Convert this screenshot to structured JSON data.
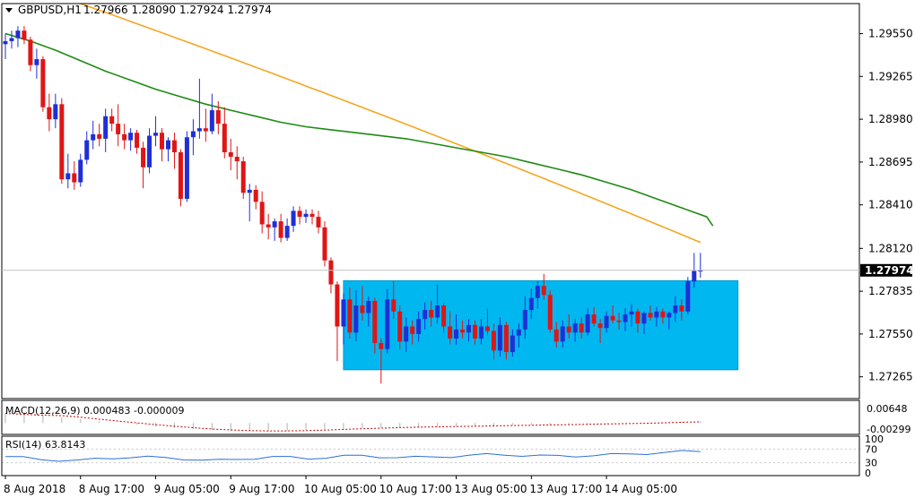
{
  "header": {
    "symbol_label": "GBPUSD,H1",
    "ohlc_text": "1.27966 1.28090 1.27924 1.27974"
  },
  "colors": {
    "bull": "#1f2fd6",
    "bear": "#e01515",
    "sma_fast": "#1e8a12",
    "sma_slow": "#f5a623",
    "box_fill": "#00b7f0",
    "macd_hist": "#b0b0b0",
    "macd_signal": "#c00000",
    "rsi_line": "#2f6fd6",
    "price_tag_bg": "#000000",
    "price_tag_text": "#ffffff"
  },
  "chart_data": [
    {
      "type": "candlestick",
      "name": "GBPUSD H1",
      "ylim": [
        1.2712,
        1.2975
      ],
      "y_ticks": [
        "1.29550",
        "1.29265",
        "1.28980",
        "1.28695",
        "1.28410",
        "1.28120",
        "1.27835",
        "1.27550",
        "1.27265"
      ],
      "y_tick_values": [
        1.2955,
        1.29265,
        1.2898,
        1.28695,
        1.2841,
        1.2812,
        1.27835,
        1.2755,
        1.27265
      ],
      "last_price": "1.27974",
      "last_price_value": 1.27974,
      "x_labels": [
        "8 Aug 2018",
        "8 Aug 17:00",
        "9 Aug 05:00",
        "9 Aug 17:00",
        "10 Aug 05:00",
        "10 Aug 17:00",
        "13 Aug 05:00",
        "13 Aug 17:00",
        "14 Aug 05:00"
      ],
      "x_label_bars": [
        0,
        12,
        24,
        36,
        48,
        60,
        72,
        84,
        96
      ],
      "candles": [
        {
          "o": 1.2948,
          "h": 1.2955,
          "l": 1.2938,
          "c": 1.295
        },
        {
          "o": 1.295,
          "h": 1.2957,
          "l": 1.2945,
          "c": 1.2952
        },
        {
          "o": 1.2952,
          "h": 1.296,
          "l": 1.2946,
          "c": 1.2957
        },
        {
          "o": 1.2957,
          "h": 1.296,
          "l": 1.2948,
          "c": 1.2951
        },
        {
          "o": 1.2951,
          "h": 1.2953,
          "l": 1.293,
          "c": 1.2934
        },
        {
          "o": 1.2934,
          "h": 1.2945,
          "l": 1.2925,
          "c": 1.2938
        },
        {
          "o": 1.2938,
          "h": 1.294,
          "l": 1.2903,
          "c": 1.2906
        },
        {
          "o": 1.2906,
          "h": 1.2915,
          "l": 1.289,
          "c": 1.2898
        },
        {
          "o": 1.2898,
          "h": 1.2915,
          "l": 1.2892,
          "c": 1.2908
        },
        {
          "o": 1.2908,
          "h": 1.2912,
          "l": 1.2855,
          "c": 1.2858
        },
        {
          "o": 1.2858,
          "h": 1.2875,
          "l": 1.2852,
          "c": 1.2862
        },
        {
          "o": 1.2862,
          "h": 1.287,
          "l": 1.2851,
          "c": 1.2856
        },
        {
          "o": 1.2856,
          "h": 1.2875,
          "l": 1.2853,
          "c": 1.2871
        },
        {
          "o": 1.2871,
          "h": 1.289,
          "l": 1.2868,
          "c": 1.2884
        },
        {
          "o": 1.2884,
          "h": 1.2897,
          "l": 1.2878,
          "c": 1.2888
        },
        {
          "o": 1.2888,
          "h": 1.2895,
          "l": 1.288,
          "c": 1.2885
        },
        {
          "o": 1.2885,
          "h": 1.2905,
          "l": 1.2876,
          "c": 1.29
        },
        {
          "o": 1.29,
          "h": 1.2905,
          "l": 1.289,
          "c": 1.2895
        },
        {
          "o": 1.2895,
          "h": 1.2908,
          "l": 1.288,
          "c": 1.2888
        },
        {
          "o": 1.2888,
          "h": 1.2895,
          "l": 1.2878,
          "c": 1.2884
        },
        {
          "o": 1.2884,
          "h": 1.2892,
          "l": 1.2877,
          "c": 1.2889
        },
        {
          "o": 1.2889,
          "h": 1.2891,
          "l": 1.2875,
          "c": 1.2879
        },
        {
          "o": 1.2879,
          "h": 1.2883,
          "l": 1.2852,
          "c": 1.2866
        },
        {
          "o": 1.2866,
          "h": 1.2892,
          "l": 1.2862,
          "c": 1.2887
        },
        {
          "o": 1.2887,
          "h": 1.29,
          "l": 1.288,
          "c": 1.2889
        },
        {
          "o": 1.2889,
          "h": 1.2892,
          "l": 1.287,
          "c": 1.2878
        },
        {
          "o": 1.2878,
          "h": 1.2886,
          "l": 1.287,
          "c": 1.2884
        },
        {
          "o": 1.2884,
          "h": 1.2889,
          "l": 1.2865,
          "c": 1.2876
        },
        {
          "o": 1.2876,
          "h": 1.2878,
          "l": 1.284,
          "c": 1.2845
        },
        {
          "o": 1.2845,
          "h": 1.289,
          "l": 1.2843,
          "c": 1.2886
        },
        {
          "o": 1.2886,
          "h": 1.2898,
          "l": 1.2874,
          "c": 1.289
        },
        {
          "o": 1.289,
          "h": 1.2925,
          "l": 1.2885,
          "c": 1.2892
        },
        {
          "o": 1.2892,
          "h": 1.2905,
          "l": 1.2883,
          "c": 1.289
        },
        {
          "o": 1.289,
          "h": 1.2915,
          "l": 1.2888,
          "c": 1.2904
        },
        {
          "o": 1.2904,
          "h": 1.291,
          "l": 1.2888,
          "c": 1.2895
        },
        {
          "o": 1.2895,
          "h": 1.2906,
          "l": 1.2872,
          "c": 1.2876
        },
        {
          "o": 1.2876,
          "h": 1.2885,
          "l": 1.2864,
          "c": 1.2873
        },
        {
          "o": 1.2873,
          "h": 1.288,
          "l": 1.2858,
          "c": 1.287
        },
        {
          "o": 1.287,
          "h": 1.2873,
          "l": 1.2845,
          "c": 1.2849
        },
        {
          "o": 1.2849,
          "h": 1.2855,
          "l": 1.283,
          "c": 1.2851
        },
        {
          "o": 1.2851,
          "h": 1.2854,
          "l": 1.2838,
          "c": 1.2843
        },
        {
          "o": 1.2843,
          "h": 1.285,
          "l": 1.2822,
          "c": 1.2828
        },
        {
          "o": 1.2828,
          "h": 1.2835,
          "l": 1.2818,
          "c": 1.2826
        },
        {
          "o": 1.2826,
          "h": 1.2832,
          "l": 1.2817,
          "c": 1.283
        },
        {
          "o": 1.283,
          "h": 1.2835,
          "l": 1.2816,
          "c": 1.2819
        },
        {
          "o": 1.2819,
          "h": 1.2832,
          "l": 1.2817,
          "c": 1.2827
        },
        {
          "o": 1.2827,
          "h": 1.284,
          "l": 1.2823,
          "c": 1.2837
        },
        {
          "o": 1.2837,
          "h": 1.284,
          "l": 1.2828,
          "c": 1.2833
        },
        {
          "o": 1.2833,
          "h": 1.2838,
          "l": 1.2829,
          "c": 1.2835
        },
        {
          "o": 1.2835,
          "h": 1.2838,
          "l": 1.2828,
          "c": 1.2833
        },
        {
          "o": 1.2833,
          "h": 1.2837,
          "l": 1.2822,
          "c": 1.2826
        },
        {
          "o": 1.2826,
          "h": 1.283,
          "l": 1.28,
          "c": 1.2804
        },
        {
          "o": 1.2804,
          "h": 1.2806,
          "l": 1.2782,
          "c": 1.2788
        },
        {
          "o": 1.2788,
          "h": 1.279,
          "l": 1.2737,
          "c": 1.276
        },
        {
          "o": 1.276,
          "h": 1.2782,
          "l": 1.2748,
          "c": 1.2778
        },
        {
          "o": 1.2778,
          "h": 1.2786,
          "l": 1.2752,
          "c": 1.2756
        },
        {
          "o": 1.2756,
          "h": 1.2784,
          "l": 1.275,
          "c": 1.2774
        },
        {
          "o": 1.2774,
          "h": 1.2787,
          "l": 1.2764,
          "c": 1.2769
        },
        {
          "o": 1.2769,
          "h": 1.278,
          "l": 1.276,
          "c": 1.2777
        },
        {
          "o": 1.2777,
          "h": 1.2779,
          "l": 1.2742,
          "c": 1.2749
        },
        {
          "o": 1.2749,
          "h": 1.2752,
          "l": 1.2722,
          "c": 1.2745
        },
        {
          "o": 1.2745,
          "h": 1.2785,
          "l": 1.2742,
          "c": 1.2778
        },
        {
          "o": 1.2778,
          "h": 1.279,
          "l": 1.2765,
          "c": 1.277
        },
        {
          "o": 1.277,
          "h": 1.2774,
          "l": 1.2745,
          "c": 1.275
        },
        {
          "o": 1.275,
          "h": 1.2766,
          "l": 1.2743,
          "c": 1.276
        },
        {
          "o": 1.276,
          "h": 1.2764,
          "l": 1.2748,
          "c": 1.2755
        },
        {
          "o": 1.2755,
          "h": 1.277,
          "l": 1.275,
          "c": 1.2765
        },
        {
          "o": 1.2765,
          "h": 1.2776,
          "l": 1.2758,
          "c": 1.2771
        },
        {
          "o": 1.2771,
          "h": 1.2777,
          "l": 1.276,
          "c": 1.2766
        },
        {
          "o": 1.2766,
          "h": 1.2788,
          "l": 1.2762,
          "c": 1.2774
        },
        {
          "o": 1.2774,
          "h": 1.2776,
          "l": 1.2756,
          "c": 1.276
        },
        {
          "o": 1.276,
          "h": 1.277,
          "l": 1.2748,
          "c": 1.2752
        },
        {
          "o": 1.2752,
          "h": 1.2768,
          "l": 1.2748,
          "c": 1.2758
        },
        {
          "o": 1.2758,
          "h": 1.2764,
          "l": 1.2752,
          "c": 1.2756
        },
        {
          "o": 1.2756,
          "h": 1.2765,
          "l": 1.275,
          "c": 1.2761
        },
        {
          "o": 1.2761,
          "h": 1.2764,
          "l": 1.2748,
          "c": 1.2752
        },
        {
          "o": 1.2752,
          "h": 1.2765,
          "l": 1.2748,
          "c": 1.276
        },
        {
          "o": 1.276,
          "h": 1.2772,
          "l": 1.2754,
          "c": 1.2757
        },
        {
          "o": 1.2757,
          "h": 1.2762,
          "l": 1.2738,
          "c": 1.2744
        },
        {
          "o": 1.2744,
          "h": 1.2766,
          "l": 1.274,
          "c": 1.2761
        },
        {
          "o": 1.2761,
          "h": 1.2763,
          "l": 1.2738,
          "c": 1.2743
        },
        {
          "o": 1.2743,
          "h": 1.2758,
          "l": 1.274,
          "c": 1.2754
        },
        {
          "o": 1.2754,
          "h": 1.2762,
          "l": 1.2746,
          "c": 1.2758
        },
        {
          "o": 1.2758,
          "h": 1.278,
          "l": 1.2752,
          "c": 1.2771
        },
        {
          "o": 1.2771,
          "h": 1.2785,
          "l": 1.2765,
          "c": 1.2779
        },
        {
          "o": 1.2779,
          "h": 1.279,
          "l": 1.2772,
          "c": 1.2787
        },
        {
          "o": 1.2787,
          "h": 1.2795,
          "l": 1.2778,
          "c": 1.2781
        },
        {
          "o": 1.2781,
          "h": 1.2784,
          "l": 1.2756,
          "c": 1.2758
        },
        {
          "o": 1.2758,
          "h": 1.2763,
          "l": 1.2746,
          "c": 1.275
        },
        {
          "o": 1.275,
          "h": 1.2764,
          "l": 1.2746,
          "c": 1.276
        },
        {
          "o": 1.276,
          "h": 1.2768,
          "l": 1.2752,
          "c": 1.2756
        },
        {
          "o": 1.2756,
          "h": 1.2765,
          "l": 1.275,
          "c": 1.2762
        },
        {
          "o": 1.2762,
          "h": 1.2766,
          "l": 1.2752,
          "c": 1.2756
        },
        {
          "o": 1.2756,
          "h": 1.2772,
          "l": 1.2754,
          "c": 1.2768
        },
        {
          "o": 1.2768,
          "h": 1.2773,
          "l": 1.276,
          "c": 1.2762
        },
        {
          "o": 1.2762,
          "h": 1.2765,
          "l": 1.2749,
          "c": 1.2759
        },
        {
          "o": 1.2759,
          "h": 1.277,
          "l": 1.2756,
          "c": 1.2767
        },
        {
          "o": 1.2767,
          "h": 1.2774,
          "l": 1.2762,
          "c": 1.2764
        },
        {
          "o": 1.2764,
          "h": 1.2769,
          "l": 1.2758,
          "c": 1.2763
        },
        {
          "o": 1.2763,
          "h": 1.2772,
          "l": 1.2757,
          "c": 1.2768
        },
        {
          "o": 1.2768,
          "h": 1.2775,
          "l": 1.276,
          "c": 1.277
        },
        {
          "o": 1.277,
          "h": 1.2772,
          "l": 1.2756,
          "c": 1.2762
        },
        {
          "o": 1.2762,
          "h": 1.277,
          "l": 1.2755,
          "c": 1.2769
        },
        {
          "o": 1.2769,
          "h": 1.2774,
          "l": 1.2764,
          "c": 1.2766
        },
        {
          "o": 1.2766,
          "h": 1.2773,
          "l": 1.276,
          "c": 1.277
        },
        {
          "o": 1.277,
          "h": 1.2772,
          "l": 1.2762,
          "c": 1.2766
        },
        {
          "o": 1.2766,
          "h": 1.277,
          "l": 1.2758,
          "c": 1.2769
        },
        {
          "o": 1.2769,
          "h": 1.278,
          "l": 1.2763,
          "c": 1.2774
        },
        {
          "o": 1.2774,
          "h": 1.2778,
          "l": 1.2764,
          "c": 1.277
        },
        {
          "o": 1.277,
          "h": 1.2793,
          "l": 1.2768,
          "c": 1.279
        },
        {
          "o": 1.279,
          "h": 1.2809,
          "l": 1.2786,
          "c": 1.2797
        },
        {
          "o": 1.27966,
          "h": 1.2809,
          "l": 1.27924,
          "c": 1.27974
        }
      ],
      "sma_fast": [
        1.2955,
        1.295,
        1.2944,
        1.2937,
        1.293,
        1.2924,
        1.2918,
        1.2913,
        1.2908,
        1.2904,
        1.29,
        1.2896,
        1.2893,
        1.2891,
        1.2889,
        1.2887,
        1.2885,
        1.2882,
        1.2879,
        1.2876,
        1.2873,
        1.2869,
        1.2865,
        1.2861,
        1.2856,
        1.2851,
        1.2845,
        1.2839,
        1.2833,
        1.2827,
        1.2821,
        1.2815,
        1.2809,
        1.2804,
        1.2799,
        1.2794,
        1.2789,
        1.2785,
        1.2781,
        1.2778,
        1.2775,
        1.2772,
        1.277,
        1.2768,
        1.2766,
        1.2764,
        1.2762,
        1.276
      ],
      "sma_fast_x_bars": [
        0,
        4,
        8,
        12,
        16,
        20,
        24,
        28,
        32,
        36,
        40,
        44,
        48,
        52,
        56,
        60,
        64,
        68,
        72,
        76,
        80,
        84,
        88,
        92,
        96,
        100,
        104,
        108,
        112,
        113,
        113,
        113,
        113,
        113,
        113,
        113,
        113,
        113,
        113,
        113,
        113,
        113,
        113,
        113,
        113,
        113,
        113,
        113
      ],
      "sma_slow_start_bar": 12,
      "sma_slow_start": 1.2975,
      "sma_slow_end": 1.2816,
      "box": {
        "x_start_bar": 54,
        "x_end_bar": 117,
        "y_top": 1.27905,
        "y_bottom": 1.27312
      }
    },
    {
      "type": "area",
      "name": "MACD",
      "label": "MACD(12,26,9) 0.000483 -0.000009",
      "y_ticks": [
        "0.00648",
        "-0.00299"
      ],
      "ylim": [
        -0.00299,
        0.00648
      ],
      "histogram": [
        0.003,
        0.0027,
        0.0024,
        0.0018,
        0.0012,
        0.0006,
        0.0,
        -0.0005,
        -0.001,
        -0.0015,
        -0.0019,
        -0.0022,
        -0.0024,
        -0.0025,
        -0.0025,
        -0.0024,
        -0.0022,
        -0.002,
        -0.0018,
        -0.0016,
        -0.0014,
        -0.0013,
        -0.0012,
        -0.0011,
        -0.001,
        -0.0009,
        -0.0008,
        -0.0007,
        -0.0006,
        -0.0005,
        -0.0004,
        -0.0003,
        -0.0002,
        -0.0001,
        0.0,
        0.0002,
        0.0004,
        0.0005
      ]
    },
    {
      "type": "line",
      "name": "RSI(14)",
      "label": "RSI(14) 63.8143",
      "y_ticks": [
        "100",
        "70",
        "30",
        "0"
      ],
      "ylim": [
        0,
        100
      ],
      "values": [
        48,
        44,
        40,
        38,
        36,
        40,
        44,
        47,
        46,
        44,
        42,
        38,
        36,
        40,
        44,
        47,
        45,
        43,
        46,
        49,
        50,
        48,
        46,
        45,
        47,
        49,
        51,
        53,
        54,
        52,
        50,
        49,
        50,
        52,
        53,
        55,
        58,
        60,
        62,
        63.8
      ]
    }
  ]
}
